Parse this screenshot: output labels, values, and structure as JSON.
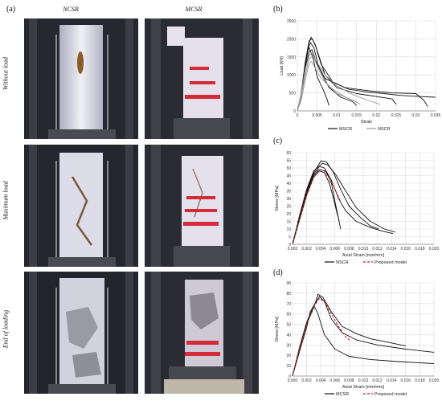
{
  "panel_a": {
    "label": "(a)",
    "columns": [
      "NCSR",
      "MCSR"
    ],
    "rows": [
      "Without load",
      "Maximum load",
      "End of loading"
    ]
  },
  "chart_data": [
    {
      "panel": "(b)",
      "type": "line",
      "xlabel": "Strain",
      "ylabel": "Load [kN]",
      "xlim": [
        0,
        0.035
      ],
      "ylim": [
        0,
        2500
      ],
      "xticks": [
        "0",
        "0.005",
        "0.01",
        "0.015",
        "0.02",
        "0.025",
        "0.03",
        "0.035"
      ],
      "yticks": [
        "0",
        "500",
        "1000",
        "1500",
        "2000",
        "2500"
      ],
      "grid": true,
      "legend": {
        "position": "bottom",
        "entries": [
          "MSCR",
          "NSCR"
        ]
      },
      "series": [
        {
          "name": "MSCR",
          "color": "#111111",
          "points": [
            [
              0,
              0
            ],
            [
              0.001,
              450
            ],
            [
              0.002,
              1300
            ],
            [
              0.0028,
              1850
            ],
            [
              0.0035,
              2050
            ],
            [
              0.0045,
              1850
            ],
            [
              0.006,
              1300
            ],
            [
              0.009,
              800
            ],
            [
              0.013,
              600
            ],
            [
              0.018,
              520
            ],
            [
              0.022,
              480
            ],
            [
              0.026,
              430
            ],
            [
              0.031,
              400
            ],
            [
              0.035,
              380
            ]
          ]
        },
        {
          "name": "MSCR",
          "color": "#111111",
          "points": [
            [
              0,
              0
            ],
            [
              0.001,
              500
            ],
            [
              0.002,
              1350
            ],
            [
              0.003,
              1950
            ],
            [
              0.0038,
              2000
            ],
            [
              0.0048,
              1750
            ],
            [
              0.007,
              1000
            ],
            [
              0.01,
              650
            ],
            [
              0.015,
              480
            ],
            [
              0.02,
              400
            ],
            [
              0.024,
              330
            ],
            [
              0.025,
              180
            ]
          ]
        },
        {
          "name": "MSCR",
          "color": "#111111",
          "points": [
            [
              0,
              0
            ],
            [
              0.001,
              400
            ],
            [
              0.002,
              1200
            ],
            [
              0.0027,
              1700
            ],
            [
              0.0033,
              1900
            ],
            [
              0.0042,
              1750
            ],
            [
              0.0055,
              1200
            ],
            [
              0.008,
              650
            ],
            [
              0.011,
              380
            ],
            [
              0.014,
              260
            ],
            [
              0.015,
              150
            ]
          ]
        },
        {
          "name": "MSCR",
          "color": "#111111",
          "points": [
            [
              0,
              0
            ],
            [
              0.0008,
              350
            ],
            [
              0.0018,
              1100
            ],
            [
              0.0025,
              1650
            ],
            [
              0.003,
              1750
            ],
            [
              0.004,
              1450
            ],
            [
              0.005,
              950
            ],
            [
              0.0065,
              600
            ],
            [
              0.0075,
              330
            ],
            [
              0.008,
              150
            ]
          ]
        },
        {
          "name": "MSCR",
          "color": "#111111",
          "points": [
            [
              0,
              0
            ],
            [
              0.001,
              450
            ],
            [
              0.002,
              1150
            ],
            [
              0.003,
              1650
            ],
            [
              0.0037,
              1700
            ],
            [
              0.0048,
              1350
            ],
            [
              0.007,
              900
            ],
            [
              0.012,
              650
            ],
            [
              0.018,
              560
            ],
            [
              0.024,
              500
            ],
            [
              0.03,
              480
            ],
            [
              0.032,
              300
            ],
            [
              0.033,
              120
            ]
          ]
        },
        {
          "name": "NSCR",
          "color": "#999999",
          "points": [
            [
              0,
              0
            ],
            [
              0.001,
              400
            ],
            [
              0.002,
              1000
            ],
            [
              0.003,
              1450
            ],
            [
              0.004,
              1520
            ],
            [
              0.005,
              1250
            ],
            [
              0.007,
              800
            ],
            [
              0.01,
              480
            ],
            [
              0.014,
              300
            ],
            [
              0.016,
              180
            ]
          ]
        },
        {
          "name": "NSCR",
          "color": "#999999",
          "points": [
            [
              0,
              0
            ],
            [
              0.001,
              500
            ],
            [
              0.002,
              1150
            ],
            [
              0.003,
              1550
            ],
            [
              0.0037,
              1600
            ],
            [
              0.0047,
              1400
            ],
            [
              0.007,
              1000
            ],
            [
              0.01,
              700
            ],
            [
              0.014,
              450
            ],
            [
              0.018,
              290
            ],
            [
              0.021,
              180
            ]
          ]
        },
        {
          "name": "NSCR",
          "color": "#999999",
          "points": [
            [
              0,
              0
            ],
            [
              0.001,
              300
            ],
            [
              0.002,
              850
            ],
            [
              0.0028,
              1250
            ],
            [
              0.0035,
              1380
            ],
            [
              0.0045,
              1200
            ],
            [
              0.006,
              900
            ],
            [
              0.009,
              600
            ],
            [
              0.012,
              400
            ],
            [
              0.015,
              250
            ]
          ]
        }
      ]
    },
    {
      "panel": "(c)",
      "type": "line",
      "xlabel": "Axial Strain [mm/mm]",
      "ylabel": "Stress [MPa]",
      "xlim": [
        0,
        0.02
      ],
      "ylim": [
        0,
        60
      ],
      "xticks": [
        "0.000",
        "0.002",
        "0.004",
        "0.006",
        "0.008",
        "0.010",
        "0.012",
        "0.014",
        "0.016",
        "0.018",
        "0.020"
      ],
      "yticks": [
        "0",
        "5",
        "10",
        "15",
        "20",
        "25",
        "30",
        "35",
        "40",
        "45",
        "50",
        "55",
        "60"
      ],
      "grid": true,
      "legend": {
        "position": "bottom",
        "entries": [
          "NSCR",
          "Proposed model"
        ]
      },
      "series": [
        {
          "name": "NSCR",
          "color": "#111111",
          "dash": false,
          "points": [
            [
              0,
              0
            ],
            [
              0.001,
              18
            ],
            [
              0.002,
              34
            ],
            [
              0.003,
              46
            ],
            [
              0.0038,
              51
            ],
            [
              0.0045,
              50
            ],
            [
              0.0055,
              42
            ],
            [
              0.0065,
              30
            ],
            [
              0.0075,
              22
            ],
            [
              0.009,
              15
            ],
            [
              0.011,
              11
            ],
            [
              0.0128,
              8.5
            ],
            [
              0.0142,
              7
            ]
          ]
        },
        {
          "name": "NSCR",
          "color": "#111111",
          "dash": false,
          "points": [
            [
              0,
              0
            ],
            [
              0.001,
              17
            ],
            [
              0.002,
              33
            ],
            [
              0.003,
              45
            ],
            [
              0.0037,
              49
            ],
            [
              0.0047,
              48
            ],
            [
              0.0055,
              40
            ],
            [
              0.006,
              28
            ],
            [
              0.0065,
              17
            ],
            [
              0.0068,
              10
            ]
          ]
        },
        {
          "name": "NSCR",
          "color": "#111111",
          "dash": false,
          "points": [
            [
              0,
              0
            ],
            [
              0.001,
              19
            ],
            [
              0.002,
              36
            ],
            [
              0.003,
              48
            ],
            [
              0.0042,
              53
            ],
            [
              0.005,
              52
            ],
            [
              0.0062,
              45
            ],
            [
              0.0075,
              35
            ],
            [
              0.009,
              24
            ],
            [
              0.011,
              15
            ],
            [
              0.013,
              10
            ],
            [
              0.0145,
              8
            ]
          ]
        },
        {
          "name": "NSCR",
          "color": "#111111",
          "dash": false,
          "points": [
            [
              0,
              0
            ],
            [
              0.001,
              18
            ],
            [
              0.002,
              35
            ],
            [
              0.003,
              47
            ],
            [
              0.004,
              54.5
            ],
            [
              0.0048,
              54
            ],
            [
              0.0058,
              47
            ],
            [
              0.0068,
              36
            ],
            [
              0.008,
              25
            ],
            [
              0.0095,
              18
            ],
            [
              0.011,
              12
            ],
            [
              0.0122,
              10
            ]
          ]
        },
        {
          "name": "NSCR",
          "color": "#111111",
          "dash": false,
          "points": [
            [
              0,
              0
            ],
            [
              0.001,
              16
            ],
            [
              0.002,
              32
            ],
            [
              0.003,
              44
            ],
            [
              0.0038,
              48
            ],
            [
              0.0045,
              47
            ],
            [
              0.0052,
              40
            ],
            [
              0.0058,
              30
            ],
            [
              0.0062,
              22
            ],
            [
              0.0065,
              17
            ],
            [
              0.0066,
              15
            ]
          ]
        },
        {
          "name": "Proposed model",
          "color": "#cc1f1f",
          "dash": true,
          "points": [
            [
              0,
              0
            ],
            [
              0.001,
              17
            ],
            [
              0.002,
              33
            ],
            [
              0.003,
              44
            ],
            [
              0.0038,
              49
            ],
            [
              0.0045,
              48
            ],
            [
              0.0055,
              41
            ],
            [
              0.0065,
              31
            ],
            [
              0.0068,
              28
            ]
          ]
        }
      ]
    },
    {
      "panel": "(d)",
      "type": "line",
      "xlabel": "Axial Strain [mm/mm]",
      "ylabel": "Stress [MPa]",
      "xlim": [
        0,
        0.02
      ],
      "ylim": [
        0,
        90
      ],
      "xticks": [
        "0.000",
        "0.002",
        "0.004",
        "0.006",
        "0.008",
        "0.010",
        "0.012",
        "0.014",
        "0.016",
        "0.018",
        "0.020"
      ],
      "yticks": [
        "0",
        "10",
        "20",
        "30",
        "40",
        "50",
        "60",
        "70",
        "80",
        "90"
      ],
      "grid": true,
      "legend": {
        "position": "bottom",
        "entries": [
          "MCSR",
          "Proposed model"
        ]
      },
      "series": [
        {
          "name": "MCSR",
          "color": "#111111",
          "dash": false,
          "points": [
            [
              0,
              0
            ],
            [
              0.001,
              28
            ],
            [
              0.002,
              52
            ],
            [
              0.003,
              68
            ],
            [
              0.0038,
              77
            ],
            [
              0.0045,
              72
            ],
            [
              0.0055,
              55
            ],
            [
              0.007,
              42
            ],
            [
              0.009,
              35
            ],
            [
              0.012,
              30
            ],
            [
              0.016,
              26
            ],
            [
              0.02,
              23
            ]
          ]
        },
        {
          "name": "MCSR",
          "color": "#111111",
          "dash": false,
          "points": [
            [
              0,
              0
            ],
            [
              0.001,
              24
            ],
            [
              0.002,
              47
            ],
            [
              0.0025,
              62
            ],
            [
              0.003,
              68
            ],
            [
              0.0035,
              62
            ],
            [
              0.0045,
              40
            ],
            [
              0.006,
              26
            ],
            [
              0.008,
              19
            ],
            [
              0.011,
              16
            ],
            [
              0.015,
              14
            ],
            [
              0.02,
              12
            ]
          ]
        },
        {
          "name": "MCSR",
          "color": "#111111",
          "dash": false,
          "points": [
            [
              0,
              0
            ],
            [
              0.001,
              27
            ],
            [
              0.002,
              50
            ],
            [
              0.003,
              66
            ],
            [
              0.0036,
              79
            ],
            [
              0.0043,
              76
            ],
            [
              0.0055,
              62
            ],
            [
              0.007,
              48
            ],
            [
              0.009,
              41
            ],
            [
              0.011,
              36
            ],
            [
              0.014,
              32
            ],
            [
              0.016,
              29
            ]
          ]
        },
        {
          "name": "Proposed model",
          "color": "#cc1f1f",
          "dash": true,
          "points": [
            [
              0,
              0
            ],
            [
              0.001,
              26
            ],
            [
              0.002,
              50
            ],
            [
              0.003,
              67
            ],
            [
              0.0038,
              75
            ],
            [
              0.0045,
              72
            ],
            [
              0.0055,
              60
            ],
            [
              0.0065,
              48
            ],
            [
              0.0075,
              38
            ],
            [
              0.0082,
              34
            ]
          ]
        }
      ]
    }
  ]
}
